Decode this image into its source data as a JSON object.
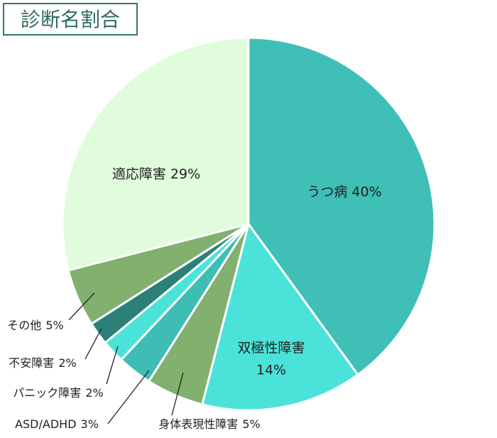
{
  "chart_data": {
    "type": "pie",
    "title": "診断名割合",
    "categories": [
      "うつ病",
      "双極性障害",
      "身体表現性障害",
      "ASD/ADHD",
      "パニック障害",
      "不安障害",
      "その他",
      "適応障害"
    ],
    "values": [
      40,
      14,
      5,
      3,
      2,
      2,
      5,
      29
    ],
    "value_labels": [
      "40%",
      "14%",
      "5%",
      "3%",
      "2%",
      "2%",
      "5%",
      "29%"
    ],
    "colors": [
      "#3fbfb6",
      "#4be3d9",
      "#82b06f",
      "#3ebdb4",
      "#4be3d9",
      "#2b8078",
      "#82b06f",
      "#e0fcdc"
    ]
  }
}
